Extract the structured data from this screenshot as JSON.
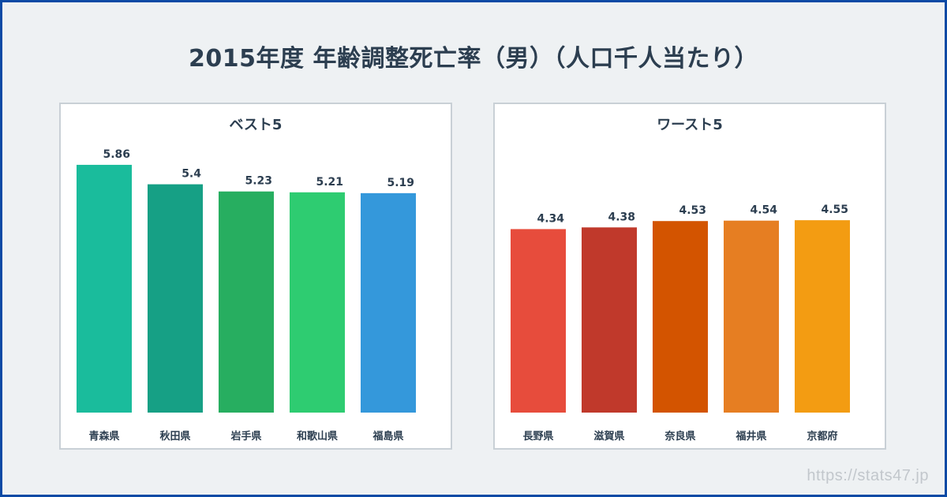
{
  "title": "2015年度 年齢調整死亡率（男）（人口千人当たり）",
  "watermark": "https://stats47.jp",
  "chart_data": [
    {
      "type": "bar",
      "title": "ベスト5",
      "categories": [
        "青森県",
        "秋田県",
        "岩手県",
        "和歌山県",
        "福島県"
      ],
      "values": [
        5.86,
        5.4,
        5.23,
        5.21,
        5.19
      ],
      "value_labels": [
        "5.86",
        "5.4",
        "5.23",
        "5.21",
        "5.19"
      ],
      "colors": [
        "#1abc9c",
        "#16a085",
        "#27ae60",
        "#2ecc71",
        "#3498db"
      ],
      "ylim": [
        0,
        6.4
      ],
      "grid": false,
      "legend": "none"
    },
    {
      "type": "bar",
      "title": "ワースト5",
      "categories": [
        "長野県",
        "滋賀県",
        "奈良県",
        "福井県",
        "京都府"
      ],
      "values": [
        4.34,
        4.38,
        4.53,
        4.54,
        4.55
      ],
      "value_labels": [
        "4.34",
        "4.38",
        "4.53",
        "4.54",
        "4.55"
      ],
      "colors": [
        "#e74c3c",
        "#c0392b",
        "#d35400",
        "#e67e22",
        "#f39c12"
      ],
      "ylim": [
        0,
        6.4
      ],
      "grid": false,
      "legend": "none"
    }
  ]
}
